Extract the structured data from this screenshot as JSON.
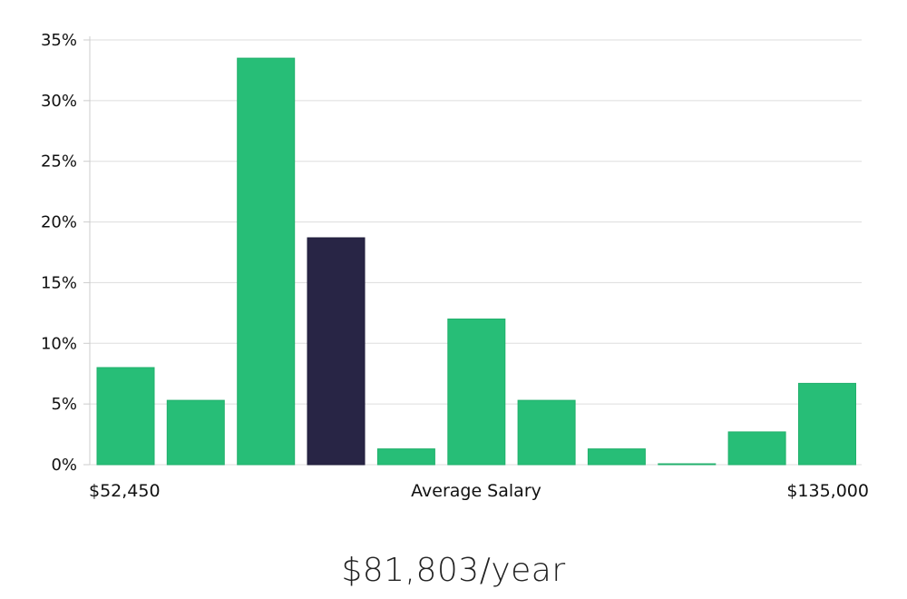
{
  "chart_data": {
    "type": "bar",
    "categories": [
      "1",
      "2",
      "3",
      "4",
      "5",
      "6",
      "7",
      "8",
      "9",
      "10",
      "11"
    ],
    "values": [
      8.0,
      5.3,
      33.5,
      18.7,
      1.3,
      12.0,
      5.3,
      1.3,
      0.05,
      2.7,
      6.7
    ],
    "highlight_index": 3,
    "ylim": [
      0,
      35
    ],
    "yticks": [
      0,
      5,
      10,
      15,
      20,
      25,
      30,
      35
    ],
    "ytick_format": "{v}%",
    "grid": true,
    "x_min_label": "$52,450",
    "x_center_label": "Average Salary",
    "x_max_label": "$135,000",
    "colors": {
      "bar": "#27be77",
      "highlight": "#282545",
      "grid": "#dddddd",
      "axis": "#cccccc"
    }
  },
  "summary": {
    "average_salary": "$81,803/year"
  }
}
